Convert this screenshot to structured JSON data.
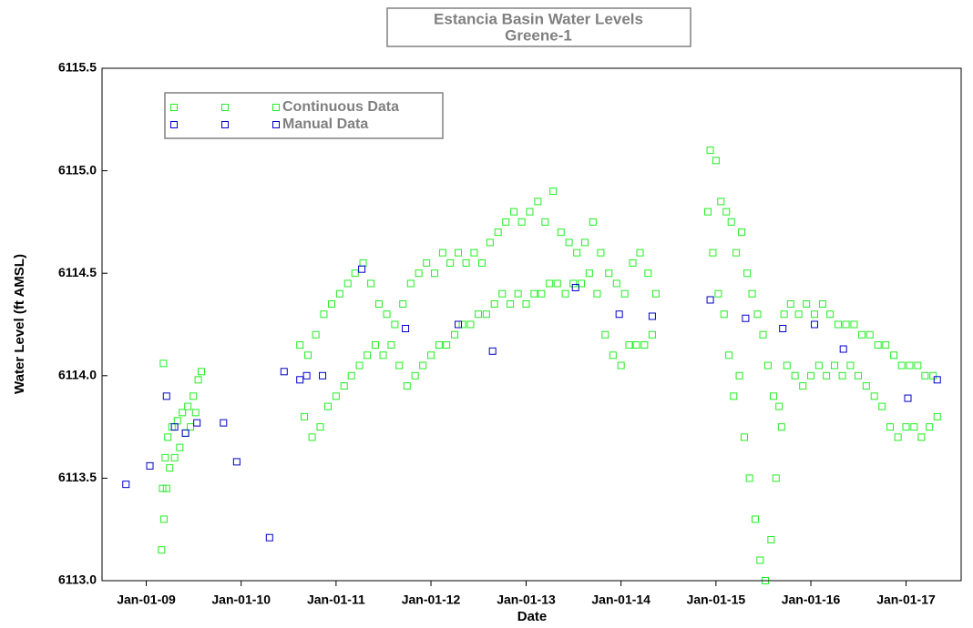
{
  "chart_data": {
    "type": "scatter",
    "title": "Estancia Basin Water Levels",
    "subtitle": "Greene-1",
    "x_label": "Date",
    "y_label": "Water Level (ft AMSL)",
    "xlim": [
      "2008-07-15",
      "2017-08-01"
    ],
    "xticks": [
      {
        "value": "2009-01-01",
        "label": "Jan-01-09"
      },
      {
        "value": "2010-01-01",
        "label": "Jan-01-10"
      },
      {
        "value": "2011-01-01",
        "label": "Jan-01-11"
      },
      {
        "value": "2012-01-01",
        "label": "Jan-01-12"
      },
      {
        "value": "2013-01-01",
        "label": "Jan-01-13"
      },
      {
        "value": "2014-01-01",
        "label": "Jan-01-14"
      },
      {
        "value": "2015-01-01",
        "label": "Jan-01-15"
      },
      {
        "value": "2016-01-01",
        "label": "Jan-01-16"
      },
      {
        "value": "2017-01-01",
        "label": "Jan-01-17"
      }
    ],
    "ylim": [
      6113.0,
      6115.5
    ],
    "yticks": [
      {
        "value": 6113.0,
        "label": "6113.0"
      },
      {
        "value": 6113.5,
        "label": "6113.5"
      },
      {
        "value": 6114.0,
        "label": "6114.0"
      },
      {
        "value": 6114.5,
        "label": "6114.5"
      },
      {
        "value": 6115.0,
        "label": "6115.0"
      },
      {
        "value": 6115.5,
        "label": "6115.5"
      }
    ],
    "legend": "top-left",
    "series": [
      {
        "name": "Continuous Data",
        "color": "#22ee22",
        "x": [
          "2009-03-01",
          "2009-03-05",
          "2009-03-08",
          "2009-03-10",
          "2009-03-15",
          "2009-03-20",
          "2009-03-25",
          "2009-04-01",
          "2009-04-10",
          "2009-04-20",
          "2009-05-01",
          "2009-05-10",
          "2009-05-20",
          "2009-06-01",
          "2009-06-10",
          "2009-06-20",
          "2009-07-01",
          "2009-07-10",
          "2009-07-20",
          "2009-08-01",
          "2010-08-15",
          "2010-09-01",
          "2010-09-15",
          "2010-10-01",
          "2010-10-15",
          "2010-11-01",
          "2010-11-15",
          "2010-12-01",
          "2010-12-15",
          "2011-01-01",
          "2011-01-15",
          "2011-02-01",
          "2011-02-15",
          "2011-03-01",
          "2011-03-15",
          "2011-04-01",
          "2011-04-15",
          "2011-05-01",
          "2011-05-15",
          "2011-06-01",
          "2011-06-15",
          "2011-07-01",
          "2011-07-15",
          "2011-08-01",
          "2011-08-15",
          "2011-09-01",
          "2011-09-15",
          "2011-10-01",
          "2011-10-15",
          "2011-11-01",
          "2011-11-15",
          "2011-12-01",
          "2011-12-15",
          "2012-01-01",
          "2012-01-15",
          "2012-02-01",
          "2012-02-15",
          "2012-03-01",
          "2012-03-15",
          "2012-04-01",
          "2012-04-15",
          "2012-05-01",
          "2012-05-15",
          "2012-06-01",
          "2012-06-15",
          "2012-07-01",
          "2012-07-15",
          "2012-08-01",
          "2012-08-15",
          "2012-09-01",
          "2012-09-15",
          "2012-10-01",
          "2012-10-15",
          "2012-11-01",
          "2012-11-15",
          "2012-12-01",
          "2012-12-15",
          "2013-01-01",
          "2013-01-15",
          "2013-02-01",
          "2013-02-15",
          "2013-03-01",
          "2013-03-15",
          "2013-04-01",
          "2013-04-15",
          "2013-05-01",
          "2013-05-15",
          "2013-06-01",
          "2013-06-15",
          "2013-07-01",
          "2013-07-15",
          "2013-08-01",
          "2013-08-15",
          "2013-09-01",
          "2013-09-15",
          "2013-10-01",
          "2013-10-15",
          "2013-11-01",
          "2013-11-15",
          "2013-12-01",
          "2013-12-15",
          "2014-01-01",
          "2014-01-15",
          "2014-02-01",
          "2014-02-15",
          "2014-03-01",
          "2014-03-15",
          "2014-04-01",
          "2014-04-15",
          "2014-05-01",
          "2014-05-15",
          "2014-12-01",
          "2014-12-10",
          "2014-12-20",
          "2015-01-01",
          "2015-01-10",
          "2015-01-20",
          "2015-02-01",
          "2015-02-10",
          "2015-02-20",
          "2015-03-01",
          "2015-03-10",
          "2015-03-20",
          "2015-04-01",
          "2015-04-10",
          "2015-04-20",
          "2015-05-01",
          "2015-05-10",
          "2015-05-20",
          "2015-06-01",
          "2015-06-10",
          "2015-06-20",
          "2015-07-01",
          "2015-07-10",
          "2015-07-20",
          "2015-08-01",
          "2015-08-10",
          "2015-08-20",
          "2015-09-01",
          "2015-09-10",
          "2015-09-20",
          "2015-10-01",
          "2015-10-15",
          "2015-11-01",
          "2015-11-15",
          "2015-12-01",
          "2015-12-15",
          "2016-01-01",
          "2016-01-15",
          "2016-02-01",
          "2016-02-15",
          "2016-03-01",
          "2016-03-15",
          "2016-04-01",
          "2016-04-15",
          "2016-05-01",
          "2016-05-15",
          "2016-06-01",
          "2016-06-15",
          "2016-07-01",
          "2016-07-15",
          "2016-08-01",
          "2016-08-15",
          "2016-09-01",
          "2016-09-15",
          "2016-10-01",
          "2016-10-15",
          "2016-11-01",
          "2016-11-15",
          "2016-12-01",
          "2016-12-15",
          "2017-01-01",
          "2017-01-15",
          "2017-02-01",
          "2017-02-15",
          "2017-03-01",
          "2017-03-15",
          "2017-04-01",
          "2017-04-15",
          "2017-05-01"
        ],
        "values": [
          6113.15,
          6113.45,
          6114.06,
          6113.3,
          6113.6,
          6113.45,
          6113.7,
          6113.55,
          6113.75,
          6113.6,
          6113.78,
          6113.65,
          6113.82,
          6113.72,
          6113.85,
          6113.75,
          6113.9,
          6113.82,
          6113.98,
          6114.02,
          6114.15,
          6113.8,
          6114.1,
          6113.7,
          6114.2,
          6113.75,
          6114.3,
          6113.85,
          6114.35,
          6113.9,
          6114.4,
          6113.95,
          6114.45,
          6114.0,
          6114.5,
          6114.05,
          6114.55,
          6114.1,
          6114.45,
          6114.15,
          6114.35,
          6114.1,
          6114.3,
          6114.15,
          6114.25,
          6114.05,
          6114.35,
          6113.95,
          6114.45,
          6114.0,
          6114.5,
          6114.05,
          6114.55,
          6114.1,
          6114.5,
          6114.15,
          6114.6,
          6114.15,
          6114.55,
          6114.2,
          6114.6,
          6114.25,
          6114.55,
          6114.25,
          6114.6,
          6114.3,
          6114.55,
          6114.3,
          6114.65,
          6114.35,
          6114.7,
          6114.4,
          6114.75,
          6114.35,
          6114.8,
          6114.4,
          6114.75,
          6114.35,
          6114.8,
          6114.4,
          6114.85,
          6114.4,
          6114.75,
          6114.45,
          6114.9,
          6114.45,
          6114.7,
          6114.4,
          6114.65,
          6114.45,
          6114.6,
          6114.45,
          6114.65,
          6114.5,
          6114.75,
          6114.4,
          6114.6,
          6114.2,
          6114.5,
          6114.1,
          6114.45,
          6114.05,
          6114.4,
          6114.15,
          6114.55,
          6114.15,
          6114.6,
          6114.15,
          6114.5,
          6114.2,
          6114.4,
          6114.8,
          6115.1,
          6114.6,
          6115.05,
          6114.4,
          6114.85,
          6114.3,
          6114.8,
          6114.1,
          6114.75,
          6113.9,
          6114.6,
          6114.0,
          6114.7,
          6113.7,
          6114.5,
          6113.5,
          6114.4,
          6113.3,
          6114.3,
          6113.1,
          6114.2,
          6113.0,
          6114.05,
          6113.2,
          6113.9,
          6113.5,
          6113.85,
          6113.75,
          6114.3,
          6114.05,
          6114.35,
          6114.0,
          6114.3,
          6113.95,
          6114.35,
          6114.0,
          6114.3,
          6114.05,
          6114.35,
          6114.0,
          6114.3,
          6114.05,
          6114.25,
          6114.0,
          6114.25,
          6114.05,
          6114.25,
          6114.0,
          6114.2,
          6113.95,
          6114.2,
          6113.9,
          6114.15,
          6113.85,
          6114.15,
          6113.75,
          6114.1,
          6113.7,
          6114.05,
          6113.75,
          6114.05,
          6113.75,
          6114.05,
          6113.7,
          6114.0,
          6113.75,
          6114.0,
          6113.8
        ]
      },
      {
        "name": "Manual Data",
        "color": "#0000cc",
        "x": [
          "2008-10-15",
          "2009-01-15",
          "2009-03-20",
          "2009-04-20",
          "2009-06-01",
          "2009-07-15",
          "2009-10-25",
          "2009-12-15",
          "2010-04-20",
          "2010-06-15",
          "2010-08-15",
          "2010-09-10",
          "2010-11-10",
          "2011-04-10",
          "2011-09-25",
          "2012-04-15",
          "2012-08-25",
          "2013-07-10",
          "2013-12-25",
          "2014-05-01",
          "2014-12-10",
          "2015-04-25",
          "2015-09-15",
          "2016-01-15",
          "2016-05-05",
          "2017-01-08",
          "2017-05-01"
        ],
        "values": [
          6113.47,
          6113.56,
          6113.9,
          6113.75,
          6113.72,
          6113.77,
          6113.77,
          6113.58,
          6113.21,
          6114.02,
          6113.98,
          6114.0,
          6114.0,
          6114.52,
          6114.23,
          6114.25,
          6114.12,
          6114.43,
          6114.3,
          6114.29,
          6114.37,
          6114.28,
          6114.23,
          6114.25,
          6114.13,
          6113.89,
          6113.98
        ]
      }
    ]
  }
}
